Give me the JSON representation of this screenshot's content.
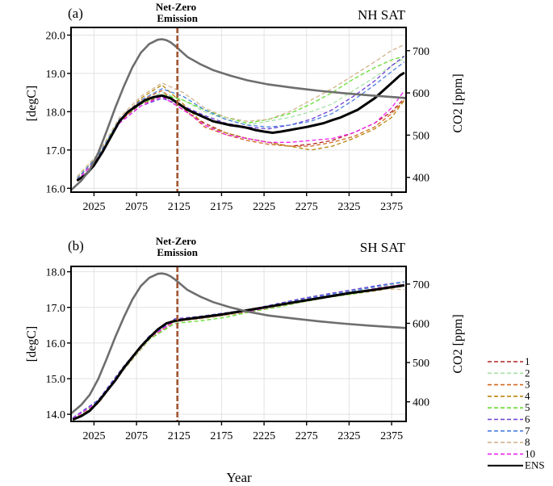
{
  "figure": {
    "xlabel": "Year",
    "ens_color": "#000000",
    "co2_color": "#6e6e6e",
    "nze_color": "#a0522d"
  },
  "legend": {
    "entries": [
      {
        "label": "1",
        "color": "#b22222",
        "style": "dashed"
      },
      {
        "label": "2",
        "color": "#a6e0a6",
        "style": "dashed"
      },
      {
        "label": "3",
        "color": "#d2691e",
        "style": "dashed"
      },
      {
        "label": "4",
        "color": "#b8860b",
        "style": "dashed"
      },
      {
        "label": "5",
        "color": "#66dd33",
        "style": "dashed"
      },
      {
        "label": "6",
        "color": "#6a3fd6",
        "style": "dashed"
      },
      {
        "label": "7",
        "color": "#4a7fe0",
        "style": "dashed"
      },
      {
        "label": "8",
        "color": "#d2b48c",
        "style": "dashed"
      },
      {
        "label": "10",
        "color": "#ee22ee",
        "style": "dashed"
      },
      {
        "label": "ENS",
        "color": "#000000",
        "style": "solid"
      }
    ]
  },
  "chart_data": [
    {
      "type": "line",
      "panel_label": "(a)",
      "title": "NH SAT",
      "annotation": "Net-Zero\nEmission",
      "annotation_x": 2123,
      "xlabel": "",
      "ylabel": "[degC]",
      "y2label": "CO2 [ppm]",
      "xlim": [
        1998,
        2392
      ],
      "ylim": [
        15.9,
        20.2
      ],
      "y2lim": [
        365,
        755
      ],
      "xticks": [
        2025,
        2075,
        2125,
        2175,
        2225,
        2275,
        2325,
        2375
      ],
      "yticks": [
        16.0,
        17.0,
        18.0,
        19.0,
        20.0
      ],
      "y2ticks": [
        400,
        500,
        600,
        700
      ],
      "series": [
        {
          "name": "ENS",
          "x": [
            2005,
            2015,
            2025,
            2035,
            2045,
            2055,
            2065,
            2075,
            2085,
            2095,
            2105,
            2115,
            2125,
            2135,
            2145,
            2155,
            2165,
            2175,
            2185,
            2195,
            2205,
            2215,
            2225,
            2235,
            2245,
            2255,
            2265,
            2275,
            2285,
            2295,
            2305,
            2315,
            2325,
            2335,
            2345,
            2355,
            2365,
            2375,
            2385,
            2390
          ],
          "values": [
            16.2,
            16.35,
            16.6,
            16.95,
            17.35,
            17.75,
            18.0,
            18.15,
            18.3,
            18.38,
            18.42,
            18.35,
            18.2,
            18.05,
            17.95,
            17.85,
            17.75,
            17.7,
            17.65,
            17.62,
            17.58,
            17.52,
            17.48,
            17.45,
            17.48,
            17.52,
            17.56,
            17.6,
            17.65,
            17.7,
            17.78,
            17.85,
            17.95,
            18.05,
            18.2,
            18.35,
            18.55,
            18.75,
            18.95,
            19.02
          ]
        },
        {
          "name": "1",
          "x": [
            2005,
            2030,
            2055,
            2080,
            2105,
            2130,
            2155,
            2180,
            2205,
            2230,
            2255,
            2280,
            2305,
            2330,
            2355,
            2375,
            2390
          ],
          "values": [
            16.25,
            16.85,
            17.75,
            18.2,
            18.4,
            18.05,
            17.7,
            17.45,
            17.3,
            17.2,
            17.1,
            17.15,
            17.25,
            17.45,
            17.7,
            18.0,
            18.35
          ]
        },
        {
          "name": "2",
          "x": [
            2005,
            2030,
            2055,
            2080,
            2105,
            2130,
            2155,
            2180,
            2205,
            2230,
            2255,
            2280,
            2305,
            2330,
            2355,
            2375,
            2390
          ],
          "values": [
            16.3,
            16.9,
            17.8,
            18.25,
            18.5,
            18.3,
            18.0,
            17.8,
            17.65,
            17.75,
            17.85,
            18.0,
            18.2,
            18.55,
            18.9,
            19.2,
            19.4
          ]
        },
        {
          "name": "3",
          "x": [
            2005,
            2030,
            2055,
            2080,
            2105,
            2130,
            2155,
            2180,
            2205,
            2230,
            2255,
            2280,
            2305,
            2330,
            2355,
            2375,
            2390
          ],
          "values": [
            16.2,
            16.8,
            17.7,
            18.3,
            18.55,
            18.1,
            17.6,
            17.4,
            17.25,
            17.15,
            17.1,
            17.1,
            17.2,
            17.35,
            17.6,
            17.95,
            18.3
          ]
        },
        {
          "name": "4",
          "x": [
            2005,
            2030,
            2055,
            2080,
            2105,
            2130,
            2155,
            2180,
            2205,
            2230,
            2255,
            2280,
            2305,
            2330,
            2355,
            2375,
            2390
          ],
          "values": [
            16.25,
            16.85,
            17.75,
            18.35,
            18.7,
            18.2,
            17.65,
            17.45,
            17.3,
            17.2,
            17.1,
            17.0,
            17.1,
            17.3,
            17.55,
            17.85,
            18.3
          ]
        },
        {
          "name": "5",
          "x": [
            2005,
            2030,
            2055,
            2080,
            2105,
            2130,
            2155,
            2180,
            2205,
            2230,
            2255,
            2280,
            2305,
            2330,
            2355,
            2375,
            2390
          ],
          "values": [
            16.3,
            16.9,
            17.8,
            18.2,
            18.45,
            18.3,
            18.05,
            17.85,
            17.7,
            17.8,
            17.95,
            18.2,
            18.5,
            18.85,
            19.15,
            19.35,
            19.45
          ]
        },
        {
          "name": "6",
          "x": [
            2005,
            2030,
            2055,
            2080,
            2105,
            2130,
            2155,
            2180,
            2205,
            2230,
            2255,
            2280,
            2305,
            2330,
            2355,
            2375,
            2390
          ],
          "values": [
            16.2,
            16.8,
            17.7,
            18.15,
            18.35,
            18.15,
            17.9,
            17.7,
            17.6,
            17.55,
            17.65,
            17.8,
            18.05,
            18.4,
            18.8,
            19.2,
            19.45
          ]
        },
        {
          "name": "7",
          "x": [
            2005,
            2030,
            2055,
            2080,
            2105,
            2130,
            2155,
            2180,
            2205,
            2230,
            2255,
            2280,
            2305,
            2330,
            2355,
            2375,
            2390
          ],
          "values": [
            16.25,
            16.85,
            17.8,
            18.3,
            18.6,
            18.4,
            18.05,
            17.8,
            17.65,
            17.6,
            17.65,
            17.75,
            17.95,
            18.3,
            18.7,
            19.05,
            19.3
          ]
        },
        {
          "name": "8",
          "x": [
            2005,
            2030,
            2055,
            2080,
            2105,
            2130,
            2155,
            2180,
            2205,
            2230,
            2255,
            2280,
            2305,
            2330,
            2355,
            2375,
            2390
          ],
          "values": [
            16.3,
            16.9,
            17.85,
            18.4,
            18.75,
            18.5,
            18.1,
            17.85,
            17.75,
            17.8,
            18.0,
            18.3,
            18.6,
            18.95,
            19.3,
            19.6,
            19.75
          ]
        },
        {
          "name": "10",
          "x": [
            2005,
            2030,
            2055,
            2080,
            2105,
            2130,
            2155,
            2180,
            2205,
            2230,
            2255,
            2280,
            2305,
            2330,
            2355,
            2375,
            2390
          ],
          "values": [
            16.2,
            16.8,
            17.7,
            18.15,
            18.4,
            18.05,
            17.65,
            17.4,
            17.3,
            17.2,
            17.2,
            17.25,
            17.3,
            17.45,
            17.7,
            18.1,
            18.55
          ]
        },
        {
          "name": "CO2",
          "axis": "y2",
          "x": [
            1998,
            2010,
            2020,
            2030,
            2040,
            2050,
            2060,
            2070,
            2080,
            2090,
            2100,
            2105,
            2110,
            2115,
            2120,
            2125,
            2135,
            2150,
            2165,
            2185,
            2205,
            2230,
            2260,
            2290,
            2320,
            2350,
            2392
          ],
          "values": [
            370,
            392,
            418,
            458,
            510,
            565,
            615,
            660,
            695,
            716,
            726,
            727,
            725,
            720,
            712,
            703,
            685,
            668,
            654,
            641,
            630,
            620,
            612,
            605,
            599,
            594,
            588
          ]
        }
      ]
    },
    {
      "type": "line",
      "panel_label": "(b)",
      "title": "SH SAT",
      "annotation": "Net-Zero\nEmission",
      "annotation_x": 2123,
      "xlabel": "Year",
      "ylabel": "[degC]",
      "y2label": "CO2 [ppm]",
      "xlim": [
        1998,
        2392
      ],
      "ylim": [
        13.8,
        18.15
      ],
      "y2lim": [
        350,
        745
      ],
      "xticks": [
        2025,
        2075,
        2125,
        2175,
        2225,
        2275,
        2325,
        2375
      ],
      "yticks": [
        14.0,
        15.0,
        16.0,
        17.0,
        18.0
      ],
      "y2ticks": [
        400,
        500,
        600,
        700
      ],
      "series": [
        {
          "name": "ENS",
          "x": [
            2000,
            2010,
            2020,
            2030,
            2040,
            2050,
            2060,
            2070,
            2080,
            2090,
            2100,
            2110,
            2120,
            2130,
            2150,
            2175,
            2200,
            2225,
            2250,
            2275,
            2300,
            2325,
            2350,
            2375,
            2390
          ],
          "values": [
            13.85,
            13.95,
            14.1,
            14.35,
            14.65,
            14.95,
            15.3,
            15.6,
            15.9,
            16.15,
            16.38,
            16.55,
            16.62,
            16.66,
            16.72,
            16.8,
            16.9,
            17.0,
            17.1,
            17.2,
            17.3,
            17.4,
            17.48,
            17.57,
            17.62
          ]
        },
        {
          "name": "1",
          "x": [
            2000,
            2030,
            2060,
            2090,
            2120,
            2150,
            2180,
            2210,
            2240,
            2270,
            2300,
            2330,
            2360,
            2390
          ],
          "values": [
            13.85,
            14.3,
            15.25,
            16.1,
            16.6,
            16.7,
            16.82,
            16.9,
            17.05,
            17.2,
            17.3,
            17.4,
            17.5,
            17.6
          ]
        },
        {
          "name": "2",
          "x": [
            2000,
            2030,
            2060,
            2090,
            2120,
            2150,
            2180,
            2210,
            2240,
            2270,
            2300,
            2330,
            2360,
            2390
          ],
          "values": [
            13.9,
            14.4,
            15.35,
            16.2,
            16.65,
            16.75,
            16.85,
            16.95,
            17.1,
            17.25,
            17.38,
            17.48,
            17.58,
            17.7
          ]
        },
        {
          "name": "3",
          "x": [
            2000,
            2030,
            2060,
            2090,
            2120,
            2150,
            2180,
            2210,
            2240,
            2270,
            2300,
            2330,
            2360,
            2390
          ],
          "values": [
            13.85,
            14.3,
            15.3,
            16.15,
            16.62,
            16.7,
            16.8,
            16.92,
            17.05,
            17.18,
            17.3,
            17.4,
            17.5,
            17.62
          ]
        },
        {
          "name": "4",
          "x": [
            2000,
            2030,
            2060,
            2090,
            2120,
            2150,
            2180,
            2210,
            2240,
            2270,
            2300,
            2330,
            2360,
            2390
          ],
          "values": [
            13.88,
            14.35,
            15.3,
            16.15,
            16.6,
            16.68,
            16.78,
            16.88,
            17.02,
            17.15,
            17.28,
            17.38,
            17.48,
            17.6
          ]
        },
        {
          "name": "5",
          "x": [
            2000,
            2030,
            2060,
            2090,
            2120,
            2150,
            2180,
            2210,
            2240,
            2270,
            2300,
            2330,
            2360,
            2390
          ],
          "values": [
            13.85,
            14.35,
            15.25,
            16.1,
            16.55,
            16.62,
            16.72,
            16.88,
            17.0,
            17.15,
            17.28,
            17.38,
            17.5,
            17.6
          ]
        },
        {
          "name": "6",
          "x": [
            2000,
            2030,
            2060,
            2090,
            2120,
            2150,
            2180,
            2210,
            2240,
            2270,
            2300,
            2330,
            2360,
            2390
          ],
          "values": [
            13.9,
            14.4,
            15.35,
            16.2,
            16.68,
            16.75,
            16.85,
            16.95,
            17.1,
            17.25,
            17.38,
            17.5,
            17.62,
            17.72
          ]
        },
        {
          "name": "7",
          "x": [
            2000,
            2030,
            2060,
            2090,
            2120,
            2150,
            2180,
            2210,
            2240,
            2270,
            2300,
            2330,
            2360,
            2390
          ],
          "values": [
            13.88,
            14.38,
            15.3,
            16.18,
            16.64,
            16.72,
            16.82,
            16.92,
            17.08,
            17.22,
            17.35,
            17.46,
            17.6,
            17.72
          ]
        },
        {
          "name": "8",
          "x": [
            2000,
            2030,
            2060,
            2090,
            2120,
            2150,
            2180,
            2210,
            2240,
            2270,
            2300,
            2330,
            2360,
            2390
          ],
          "values": [
            13.85,
            14.3,
            15.25,
            16.12,
            16.6,
            16.68,
            16.78,
            16.9,
            17.02,
            17.16,
            17.3,
            17.4,
            17.52,
            17.5
          ]
        },
        {
          "name": "10",
          "x": [
            2000,
            2030,
            2060,
            2090,
            2120,
            2150,
            2180,
            2210,
            2240,
            2270,
            2300,
            2330,
            2360,
            2390
          ],
          "values": [
            13.88,
            14.35,
            15.3,
            16.15,
            16.62,
            16.7,
            16.82,
            16.9,
            17.05,
            17.2,
            17.32,
            17.42,
            17.55,
            17.65
          ]
        },
        {
          "name": "CO2",
          "axis": "y2",
          "x": [
            1998,
            2010,
            2020,
            2030,
            2040,
            2050,
            2060,
            2070,
            2080,
            2090,
            2100,
            2105,
            2110,
            2115,
            2120,
            2125,
            2135,
            2150,
            2165,
            2185,
            2205,
            2230,
            2260,
            2290,
            2320,
            2350,
            2392
          ],
          "values": [
            370,
            392,
            418,
            458,
            510,
            565,
            615,
            660,
            695,
            716,
            726,
            727,
            725,
            720,
            712,
            703,
            685,
            668,
            654,
            641,
            630,
            620,
            612,
            605,
            599,
            594,
            588
          ]
        }
      ]
    }
  ]
}
